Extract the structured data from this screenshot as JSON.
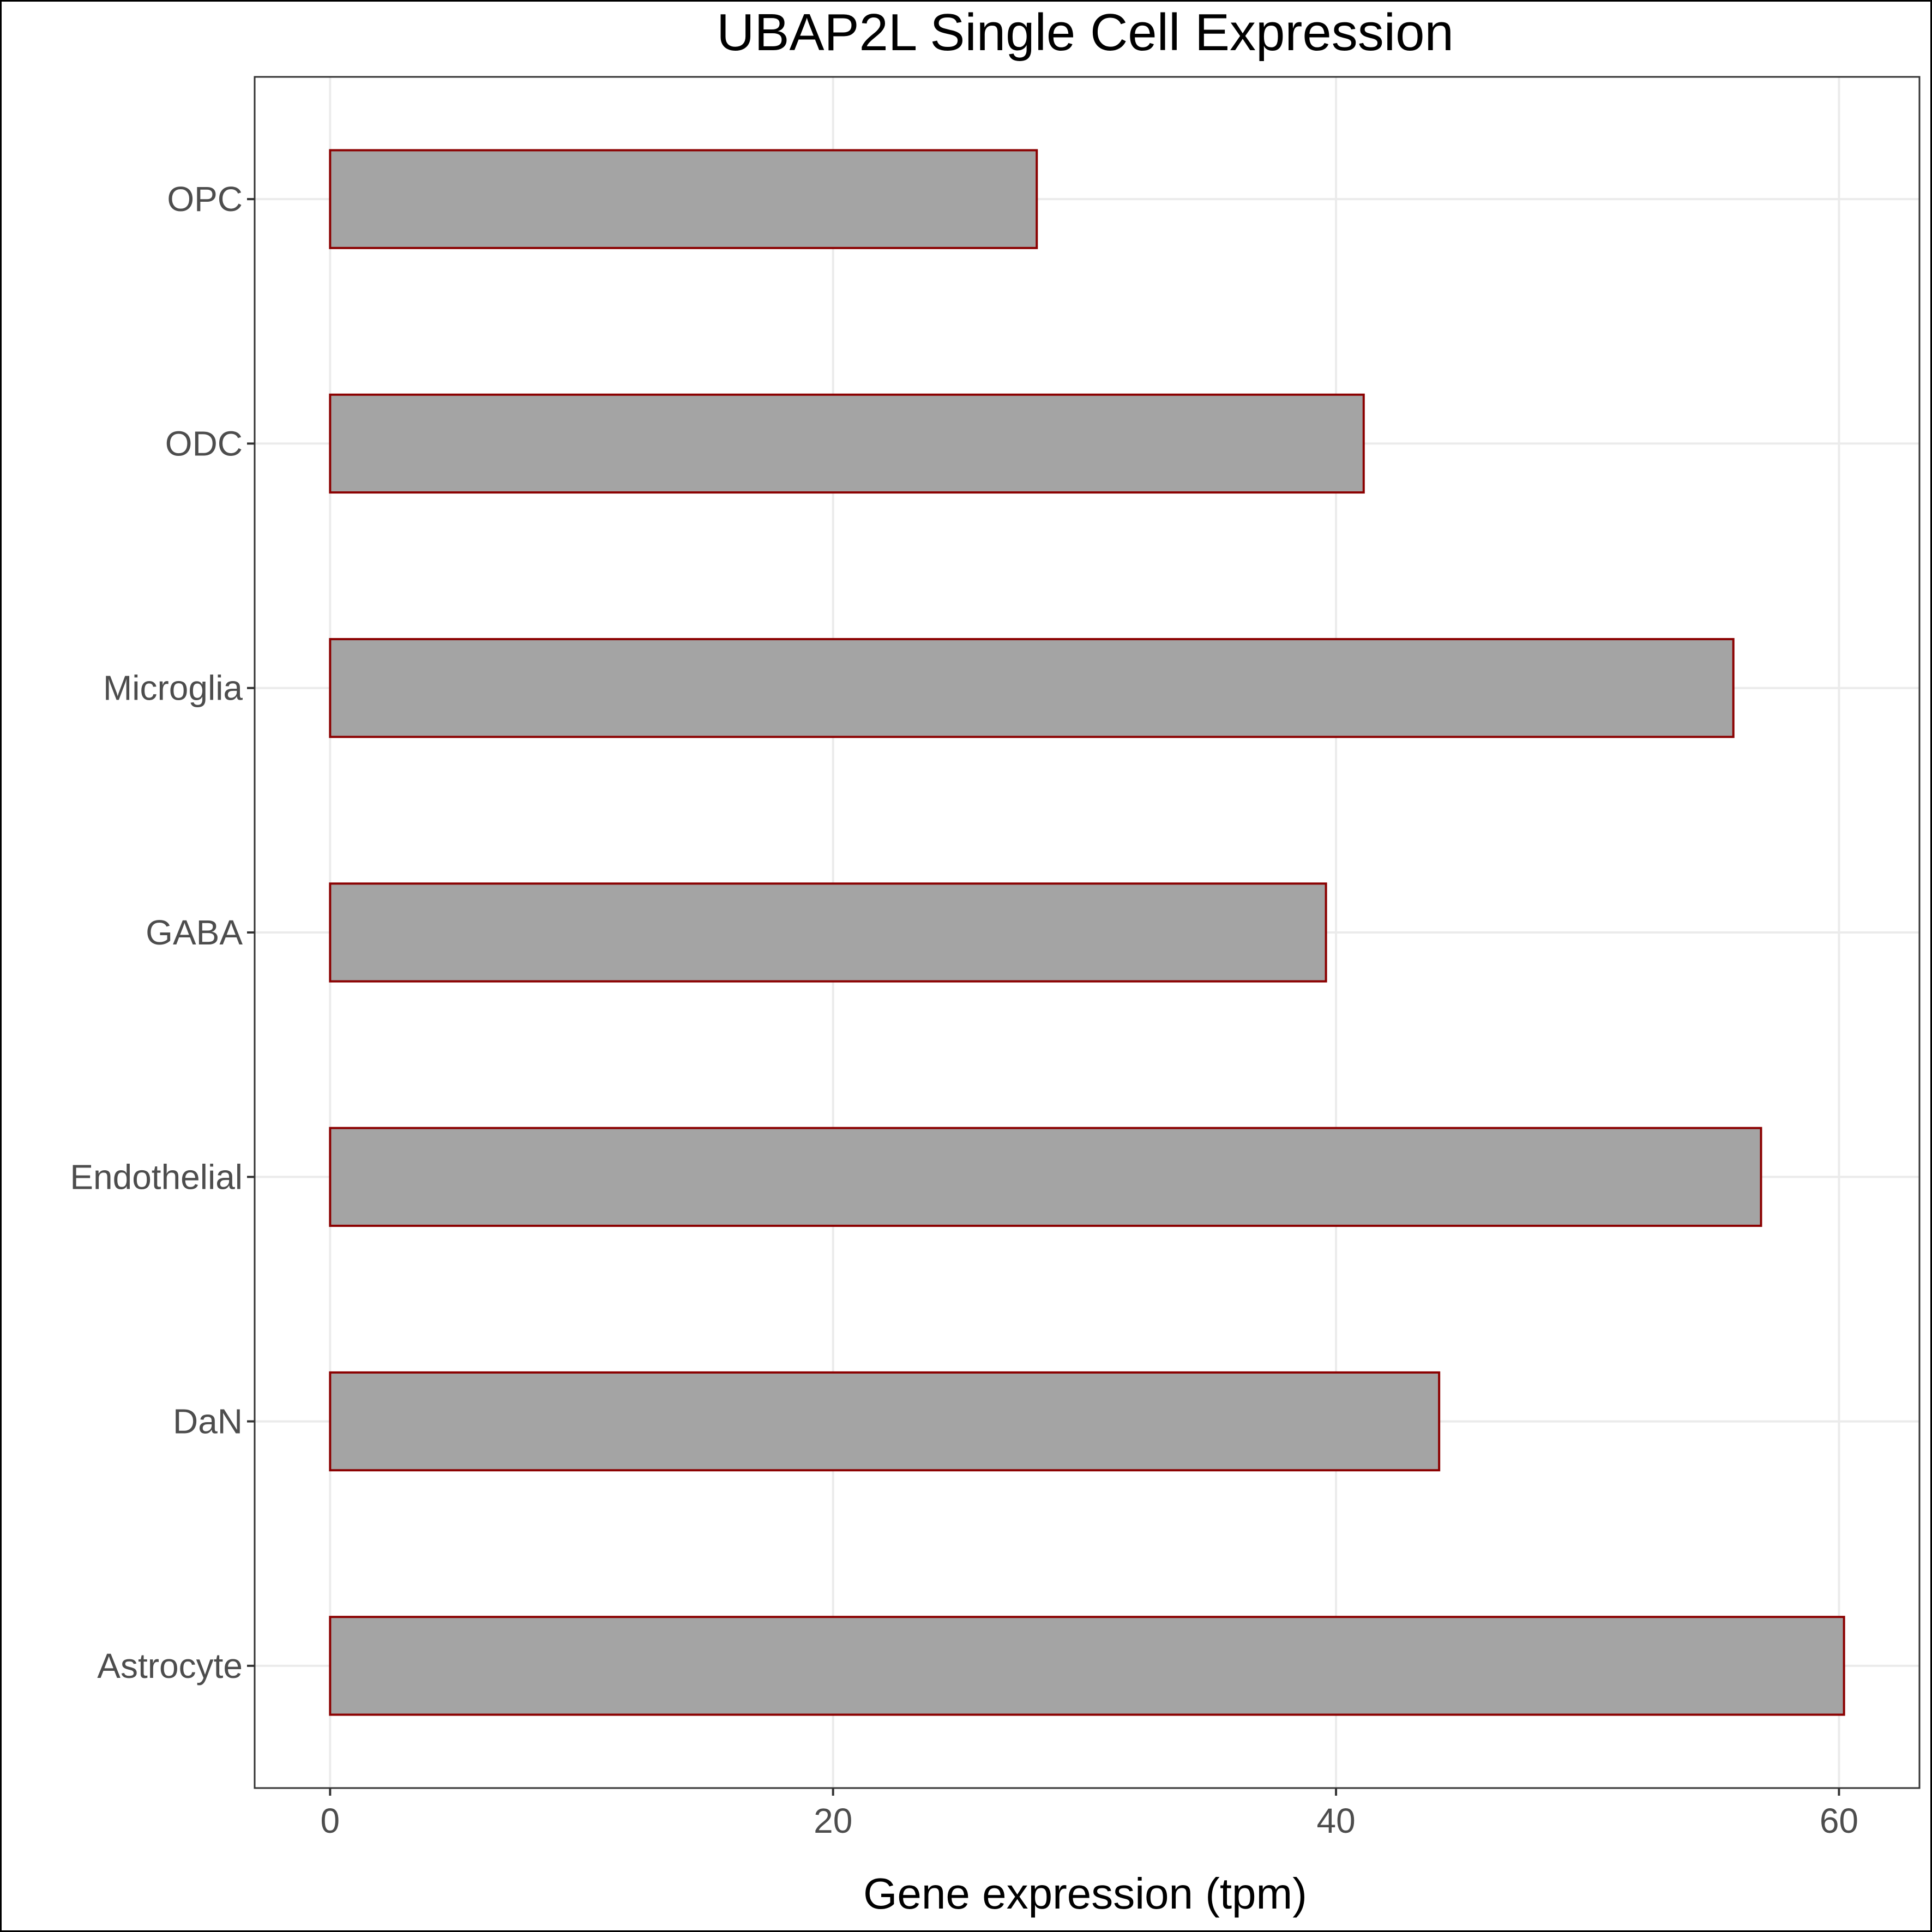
{
  "chart_data": {
    "type": "bar",
    "orientation": "horizontal",
    "title": "UBAP2L Single Cell Expression",
    "xlabel": "Gene expression (tpm)",
    "ylabel": "",
    "categories": [
      "OPC",
      "ODC",
      "Microglia",
      "GABA",
      "Endothelial",
      "DaN",
      "Astrocyte"
    ],
    "values": [
      28.1,
      41.1,
      55.8,
      39.6,
      56.9,
      44.1,
      60.2
    ],
    "xlim": [
      -3,
      63.2
    ],
    "xticks": [
      0,
      20,
      40,
      60
    ],
    "xtick_labels": [
      "0",
      "20",
      "40",
      "60"
    ],
    "grid": true,
    "bar_fill": "#a4a4a4",
    "bar_stroke": "#8b0000"
  }
}
